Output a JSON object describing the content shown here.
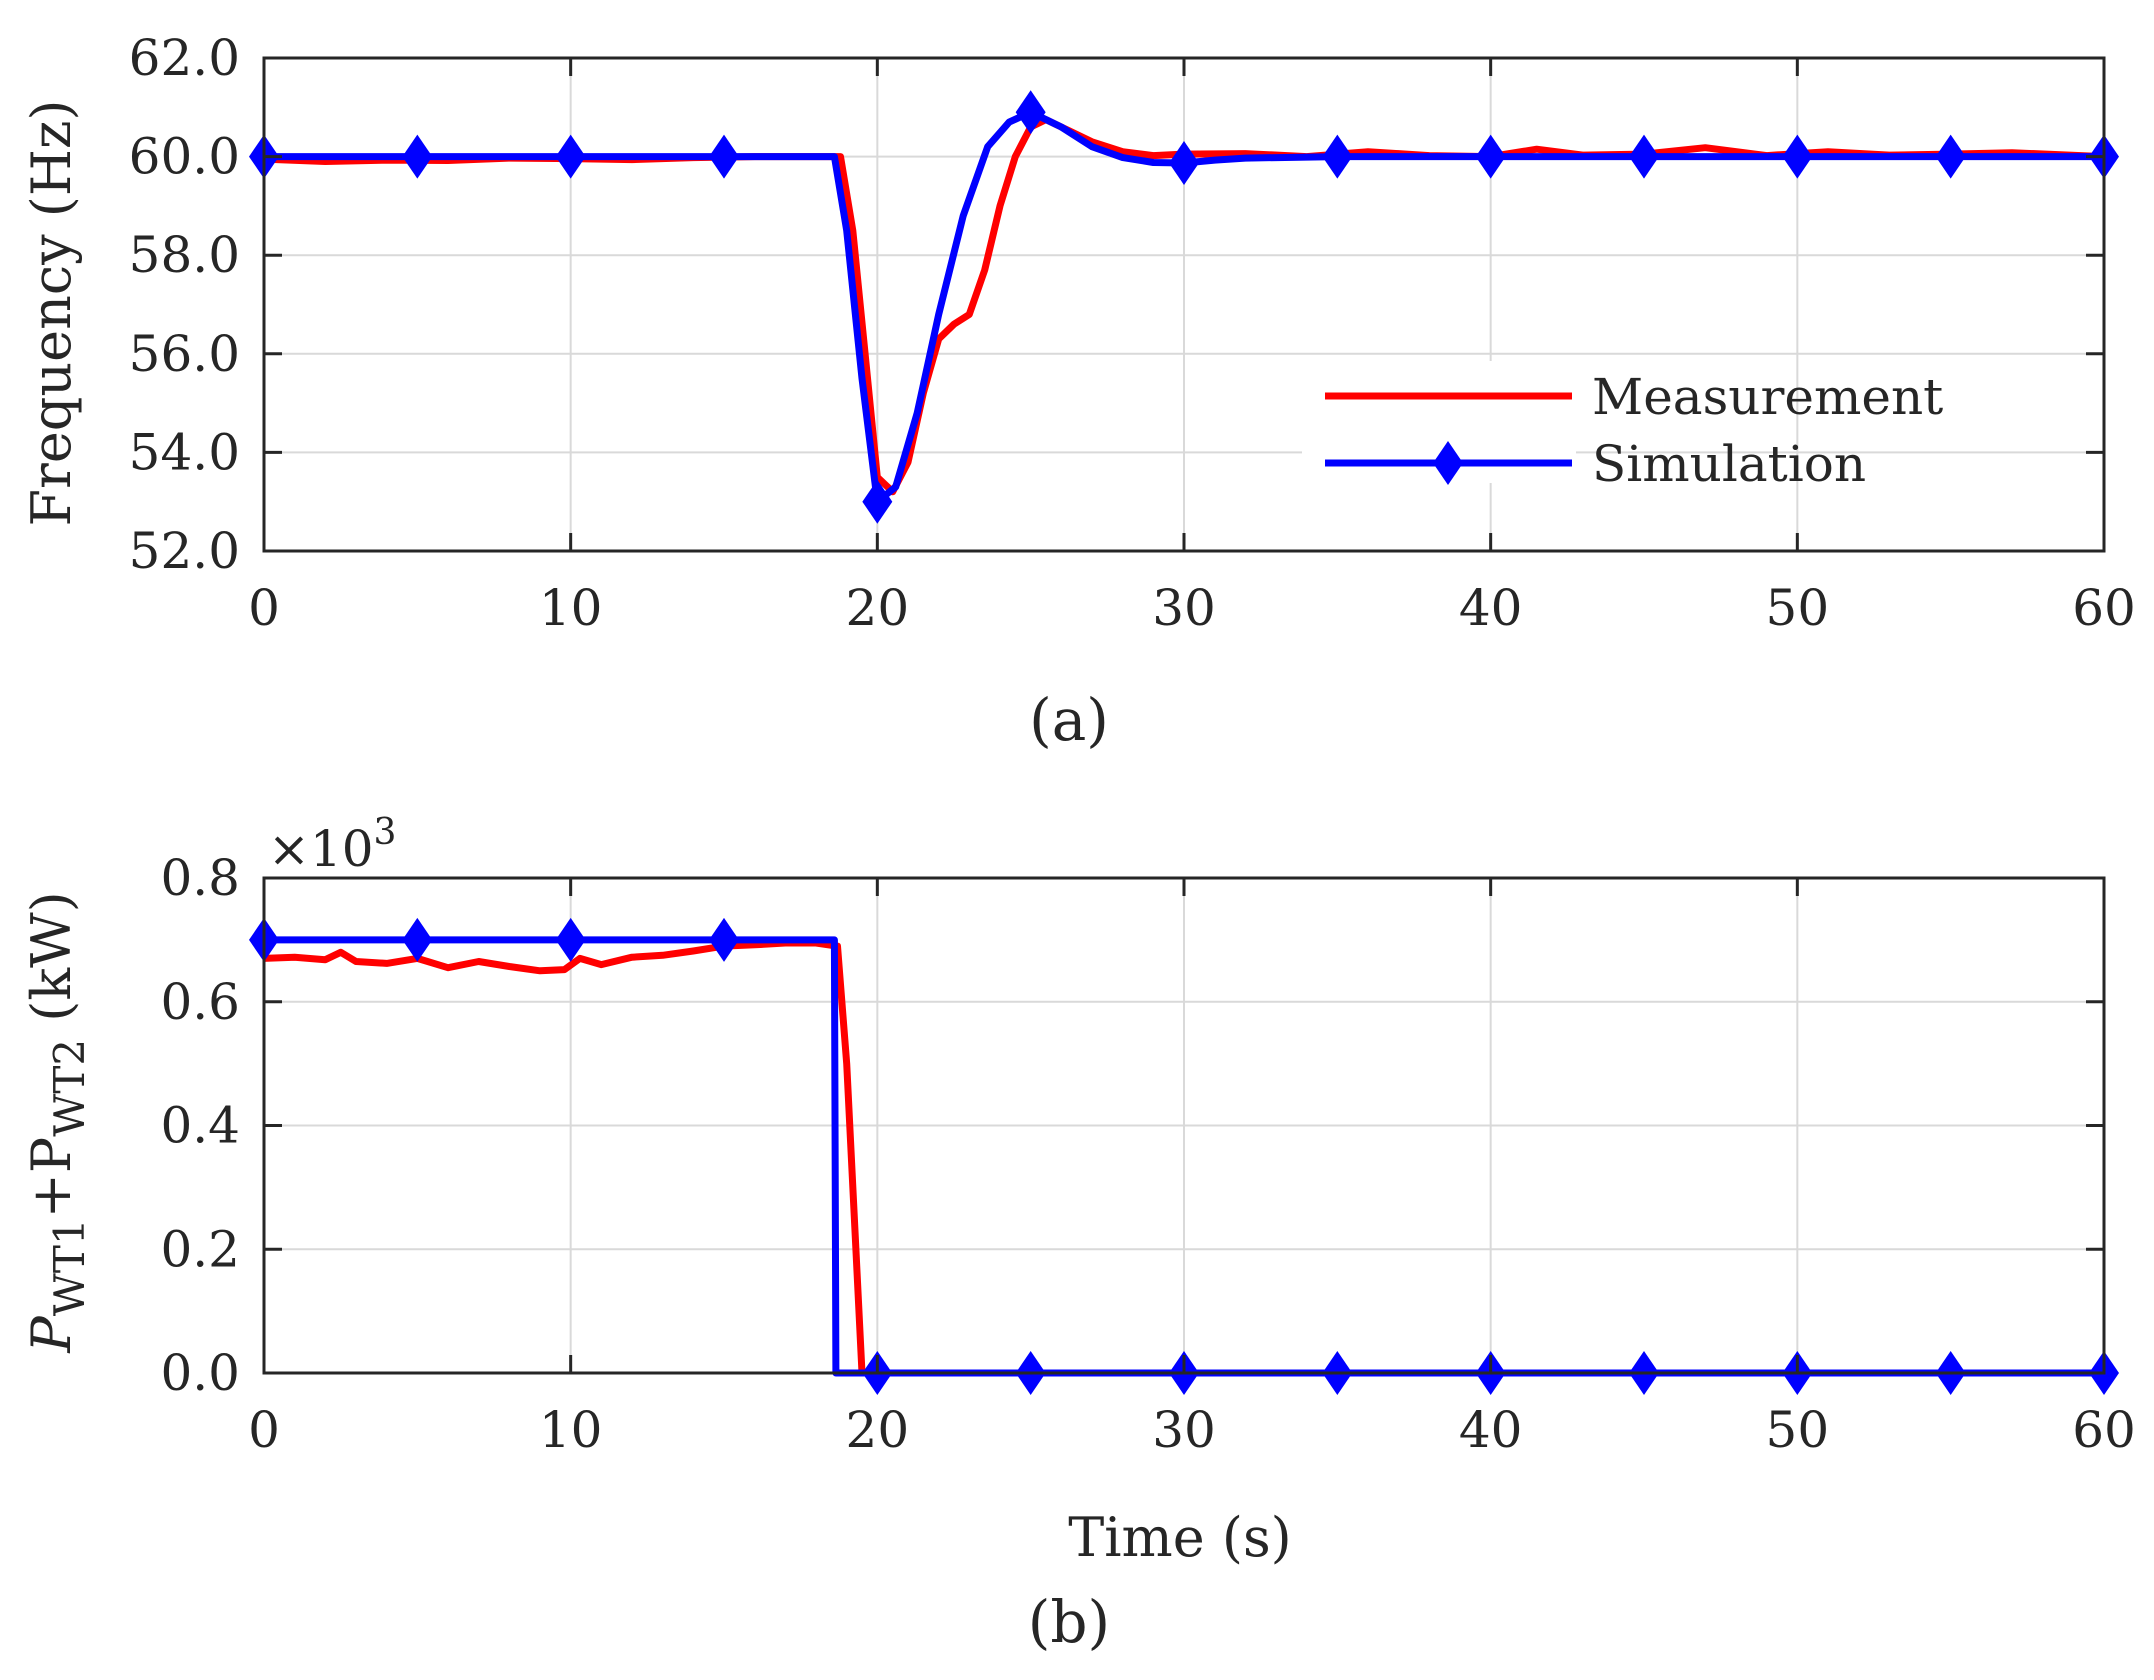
{
  "figure": {
    "caption_a": "(a)",
    "caption_b": "(b)"
  },
  "colors": {
    "measurement": "#ff0000",
    "simulation": "#0000ff",
    "axis": "#262626",
    "grid": "#d9d9d9"
  },
  "chart_data": [
    {
      "type": "line",
      "panel": "a",
      "ylabel": "Frequency (Hz)",
      "xlabel": "",
      "xlim": [
        0,
        60
      ],
      "ylim": [
        52,
        62
      ],
      "xticks": [
        0,
        10,
        20,
        30,
        40,
        50,
        60
      ],
      "yticks": [
        52,
        54,
        56,
        58,
        60,
        62
      ],
      "ytick_labels": [
        "52.0",
        "54.0",
        "56.0",
        "58.0",
        "60.0",
        "62.0"
      ],
      "grid": true,
      "legend": {
        "location": "lower-right",
        "entries": [
          "Measurement",
          "Simulation"
        ]
      },
      "series": [
        {
          "name": "Measurement",
          "color": "#ff0000",
          "marker": "none",
          "points": [
            [
              0,
              59.95
            ],
            [
              2,
              59.9
            ],
            [
              4,
              59.93
            ],
            [
              6,
              59.92
            ],
            [
              8,
              59.97
            ],
            [
              10,
              59.96
            ],
            [
              12,
              59.94
            ],
            [
              14,
              59.98
            ],
            [
              16,
              60.0
            ],
            [
              18,
              60.0
            ],
            [
              18.8,
              60.0
            ],
            [
              19.2,
              58.5
            ],
            [
              19.6,
              56.0
            ],
            [
              20,
              53.5
            ],
            [
              20.5,
              53.2
            ],
            [
              21,
              53.8
            ],
            [
              21.5,
              55.2
            ],
            [
              22,
              56.3
            ],
            [
              22.5,
              56.6
            ],
            [
              23,
              56.8
            ],
            [
              23.5,
              57.7
            ],
            [
              24,
              59.0
            ],
            [
              24.5,
              60.0
            ],
            [
              25,
              60.6
            ],
            [
              25.5,
              60.75
            ],
            [
              26,
              60.6
            ],
            [
              27,
              60.3
            ],
            [
              28,
              60.1
            ],
            [
              29,
              60.02
            ],
            [
              30,
              60.05
            ],
            [
              32,
              60.06
            ],
            [
              34,
              60.0
            ],
            [
              36,
              60.1
            ],
            [
              38,
              60.02
            ],
            [
              40,
              60.0
            ],
            [
              41.5,
              60.15
            ],
            [
              43,
              60.03
            ],
            [
              45,
              60.05
            ],
            [
              47,
              60.18
            ],
            [
              49,
              60.02
            ],
            [
              51,
              60.1
            ],
            [
              53,
              60.03
            ],
            [
              55,
              60.05
            ],
            [
              57,
              60.08
            ],
            [
              60,
              60.0
            ]
          ]
        },
        {
          "name": "Simulation",
          "color": "#0000ff",
          "marker": "diamond",
          "marker_x": [
            0,
            5,
            10,
            15,
            20,
            25,
            30,
            35,
            40,
            45,
            50,
            55,
            60
          ],
          "points": [
            [
              0,
              60.0
            ],
            [
              18.6,
              60.0
            ],
            [
              19.0,
              58.5
            ],
            [
              19.5,
              55.5
            ],
            [
              20,
              53.0
            ],
            [
              20.6,
              53.3
            ],
            [
              21.3,
              54.8
            ],
            [
              22,
              56.8
            ],
            [
              22.8,
              58.8
            ],
            [
              23.6,
              60.2
            ],
            [
              24.3,
              60.7
            ],
            [
              25,
              60.9
            ],
            [
              26,
              60.6
            ],
            [
              27,
              60.2
            ],
            [
              28,
              59.98
            ],
            [
              29,
              59.88
            ],
            [
              30,
              59.87
            ],
            [
              31,
              59.93
            ],
            [
              32,
              59.97
            ],
            [
              35,
              60.0
            ],
            [
              60,
              60.0
            ]
          ]
        }
      ]
    },
    {
      "type": "line",
      "panel": "b",
      "ylabel_prefix": "P",
      "ylabel_sub1": "WT1",
      "ylabel_plus": "+P",
      "ylabel_sub2": "WT2",
      "ylabel_unit": " (kW)",
      "xlabel": "Time (s)",
      "multiplier_label": "×10",
      "multiplier_exp": "3",
      "xlim": [
        0,
        60
      ],
      "ylim": [
        0,
        0.8
      ],
      "xticks": [
        0,
        10,
        20,
        30,
        40,
        50,
        60
      ],
      "yticks": [
        0,
        0.2,
        0.4,
        0.6,
        0.8
      ],
      "ytick_labels": [
        "0.0",
        "0.2",
        "0.4",
        "0.6",
        "0.8"
      ],
      "grid": true,
      "series": [
        {
          "name": "Measurement",
          "color": "#ff0000",
          "marker": "none",
          "points": [
            [
              0,
              0.67
            ],
            [
              1,
              0.672
            ],
            [
              2,
              0.668
            ],
            [
              2.5,
              0.68
            ],
            [
              3,
              0.665
            ],
            [
              4,
              0.662
            ],
            [
              5,
              0.67
            ],
            [
              6,
              0.655
            ],
            [
              7,
              0.665
            ],
            [
              8,
              0.657
            ],
            [
              9,
              0.65
            ],
            [
              9.8,
              0.652
            ],
            [
              10.3,
              0.67
            ],
            [
              11,
              0.66
            ],
            [
              12,
              0.672
            ],
            [
              13,
              0.675
            ],
            [
              14,
              0.682
            ],
            [
              15,
              0.69
            ],
            [
              16,
              0.692
            ],
            [
              17,
              0.695
            ],
            [
              18,
              0.695
            ],
            [
              18.7,
              0.69
            ],
            [
              19.0,
              0.5
            ],
            [
              19.3,
              0.2
            ],
            [
              19.5,
              0.0
            ],
            [
              60,
              0.0
            ]
          ]
        },
        {
          "name": "Simulation",
          "color": "#0000ff",
          "marker": "diamond",
          "marker_x": [
            0,
            5,
            10,
            15,
            20,
            25,
            30,
            35,
            40,
            45,
            50,
            55,
            60
          ],
          "points": [
            [
              0,
              0.7
            ],
            [
              18.6,
              0.7
            ],
            [
              18.65,
              0.0
            ],
            [
              60,
              0.0
            ]
          ]
        }
      ]
    }
  ]
}
